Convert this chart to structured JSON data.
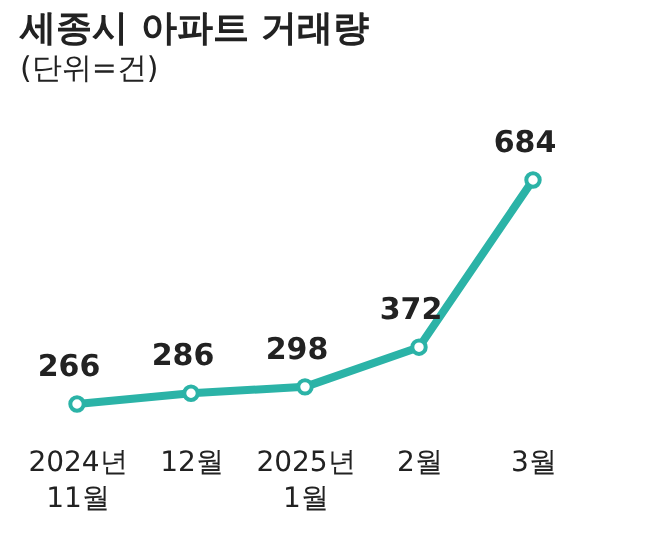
{
  "chart_data": {
    "type": "line",
    "title": "세종시 아파트 거래량",
    "subtitle": "(단위=건)",
    "categories": [
      "2024년\n11월",
      "12월",
      "2025년\n1월",
      "2월",
      "3월"
    ],
    "series": [
      {
        "color": "#2bb3a7",
        "values": [
          266,
          286,
          298,
          372,
          684
        ]
      }
    ],
    "data_labels": true,
    "marker": "circle",
    "line_style": "solid",
    "grid": false,
    "tick_labels": "x"
  }
}
